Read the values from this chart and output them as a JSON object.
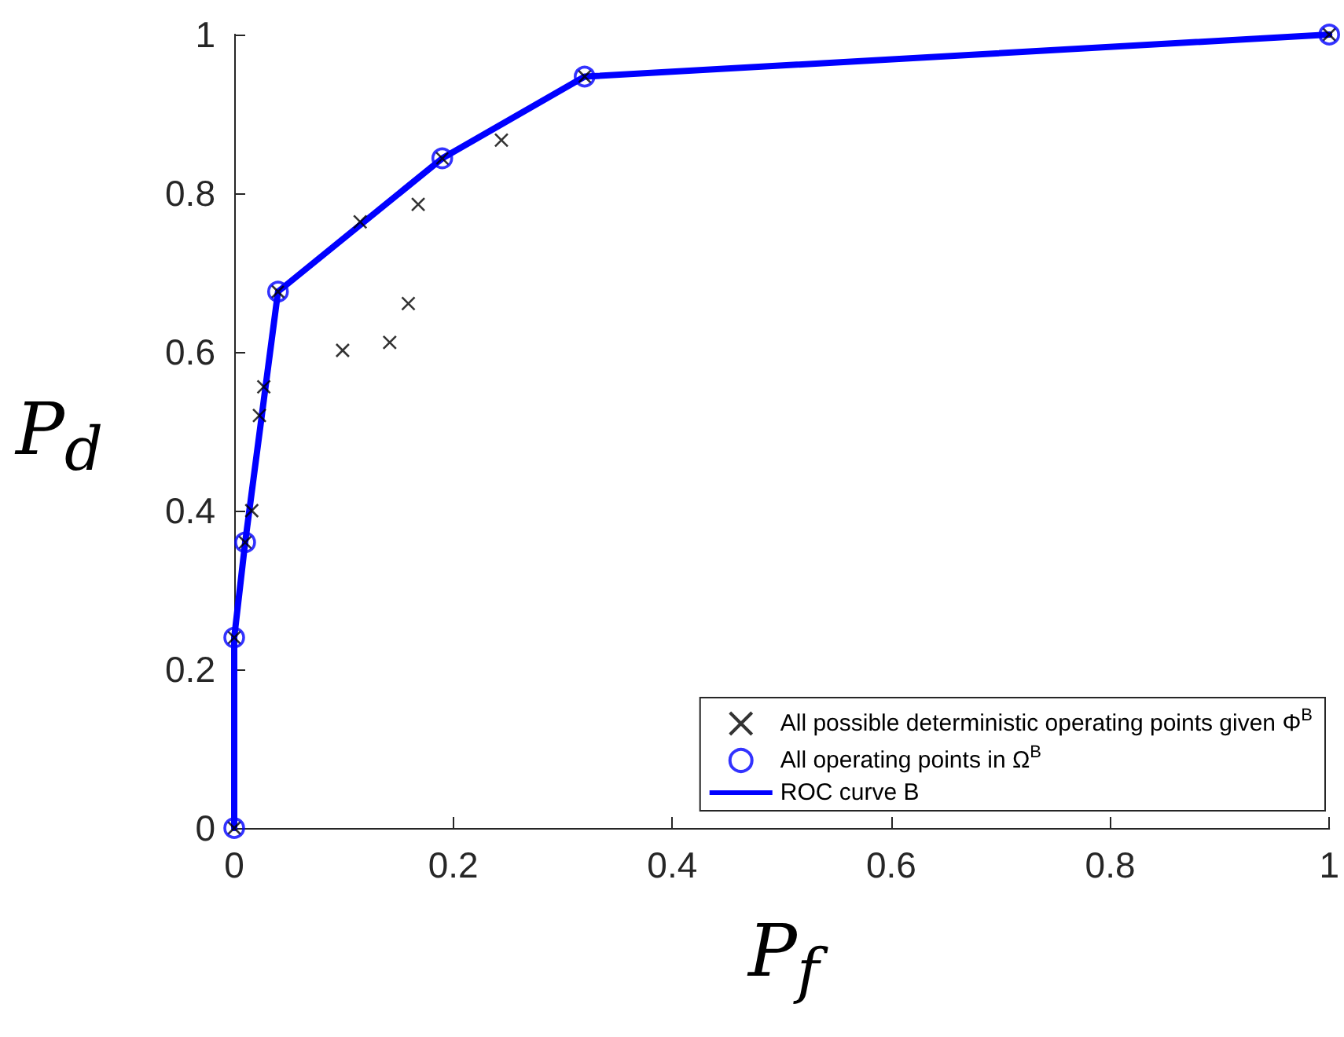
{
  "chart_data": {
    "type": "scatter",
    "xlabel": "P$_{f}$",
    "ylabel": "P$_{d}$",
    "xlim": [
      0,
      1
    ],
    "ylim": [
      0,
      1
    ],
    "xticks": [
      0,
      0.2,
      0.4,
      0.6,
      0.8,
      1
    ],
    "yticks": [
      0,
      0.2,
      0.4,
      0.6,
      0.8,
      1
    ],
    "grid": false,
    "legend": "bottom right",
    "series": [
      {
        "name": "All possible deterministic operating points given Φ$^{B}$",
        "marker": "cross",
        "color": "#000000",
        "x": [
          0,
          0,
          0.01,
          0.016,
          0.023,
          0.027,
          0.04,
          0.099,
          0.142,
          0.159,
          0.115,
          0.168,
          0.19,
          0.244,
          0.32,
          1
        ],
        "values": [
          0,
          0.24,
          0.36,
          0.4,
          0.52,
          0.556,
          0.676,
          0.602,
          0.612,
          0.661,
          0.764,
          0.786,
          0.844,
          0.867,
          0.947,
          1
        ]
      },
      {
        "name": "All operating points in Ω$^{B}$",
        "marker": "circle",
        "color": "#0000ff",
        "x": [
          0,
          0,
          0.01,
          0.04,
          0.19,
          0.32,
          1
        ],
        "values": [
          0,
          0.24,
          0.36,
          0.676,
          0.844,
          0.947,
          1
        ]
      },
      {
        "name": "ROC curve B",
        "type": "line",
        "marker": "none",
        "line_style": "solid",
        "color": "#0000ff",
        "x": [
          0,
          0,
          0.01,
          0.04,
          0.19,
          0.32,
          1
        ],
        "values": [
          0,
          0.24,
          0.36,
          0.676,
          0.844,
          0.947,
          1
        ]
      }
    ]
  }
}
